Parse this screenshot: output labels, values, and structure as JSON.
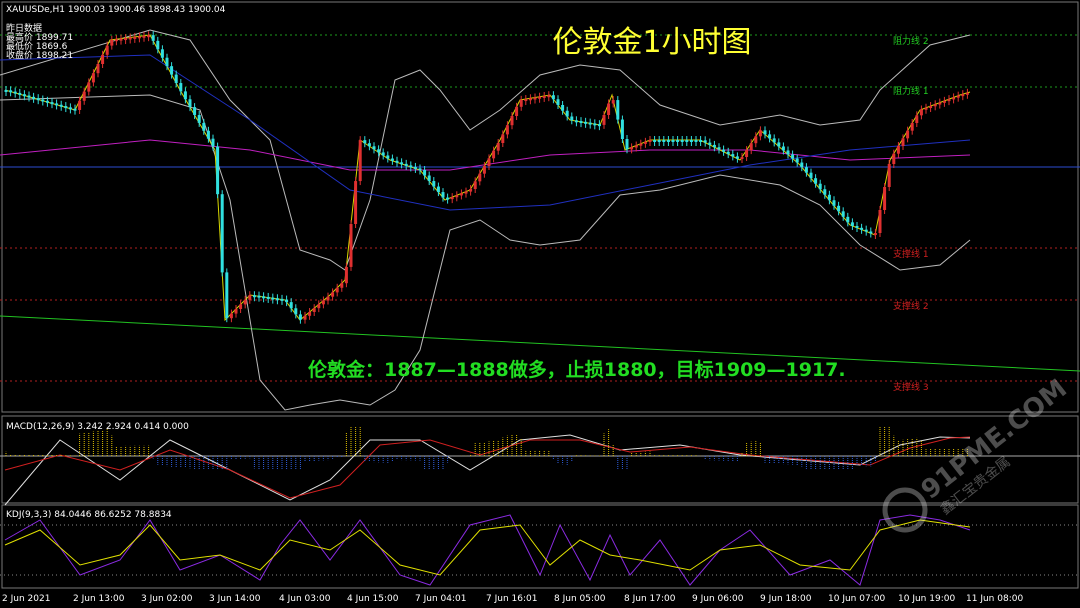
{
  "header": {
    "symbol_info": "XAUUSDe,H1  1900.03 1900.46 1898.43 1900.04",
    "yesterday": {
      "title": "昨日数据",
      "high": "最高价 1899.71",
      "low": "最低价 1869.6",
      "close": "收盘价 1898.21"
    }
  },
  "title": "伦敦金1小时图",
  "level_labels": [
    "阻力线 2",
    "阻力线 1",
    "支撑线 1",
    "支撑线 2",
    "支撑线 3"
  ],
  "annotation": "伦敦金：1887—1888做多，止损1880，目标1909—1917.",
  "macd_label": "MACD(12,26,9) 3.242 2.924 0.414 0.000",
  "kdj_label": "KDJ(9,3,3) 84.0446 86.6252 78.8834",
  "x_axis_labels": [
    "2 Jun 2021",
    "2 Jun 13:00",
    "3 Jun 02:00",
    "3 Jun 14:00",
    "4 Jun 03:00",
    "4 Jun 15:00",
    "7 Jun 04:01",
    "7 Jun 16:01",
    "8 Jun 05:00",
    "8 Jun 17:00",
    "9 Jun 06:00",
    "9 Jun 18:00",
    "10 Jun 07:00",
    "10 Jun 19:00",
    "11 Jun 08:00"
  ],
  "watermark": {
    "site": "91PME.COM",
    "name": "鑫汇宝贵金属"
  }
}
